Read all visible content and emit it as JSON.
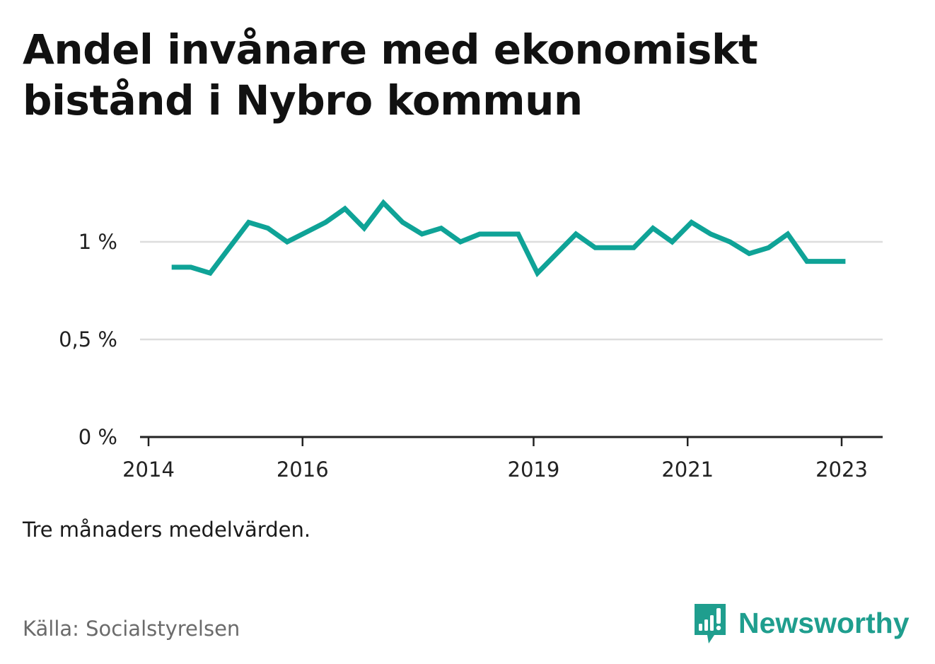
{
  "title": "Andel invånare med ekonomiskt bistånd i Nybro kommun",
  "note": "Tre månaders medelvärden.",
  "source": "Källa: Socialstyrelsen",
  "brand": {
    "name": "Newsworthy",
    "icon": "newsworthy-logo-icon"
  },
  "colors": {
    "line": "#0fa397",
    "grid": "#dddddd",
    "axis": "#222222",
    "brand": "#1f9e8e"
  },
  "chart_data": {
    "type": "line",
    "title": "Andel invånare med ekonomiskt bistånd i Nybro kommun",
    "xlabel": "",
    "ylabel": "",
    "ylim": [
      0,
      1.2
    ],
    "yticks": [
      {
        "value": 0,
        "label": "0 %"
      },
      {
        "value": 0.5,
        "label": "0,5 %"
      },
      {
        "value": 1,
        "label": "1 %"
      }
    ],
    "xticks": [
      {
        "value": 2014.0,
        "label": "2014"
      },
      {
        "value": 2016.0,
        "label": "2016"
      },
      {
        "value": 2019.0,
        "label": "2019"
      },
      {
        "value": 2021.0,
        "label": "2021"
      },
      {
        "value": 2023.0,
        "label": "2023"
      }
    ],
    "grid": true,
    "series": [
      {
        "x": [
          2014.3,
          2014.55,
          2014.8,
          2015.05,
          2015.3,
          2015.55,
          2015.8,
          2016.05,
          2016.3,
          2016.55,
          2016.8,
          2017.05,
          2017.3,
          2017.55,
          2017.8,
          2018.05,
          2018.3,
          2018.55,
          2018.8,
          2019.05,
          2019.3,
          2019.55,
          2019.8,
          2020.05,
          2020.3,
          2020.55,
          2020.8,
          2021.05,
          2021.3,
          2021.55,
          2021.8,
          2022.05,
          2022.3,
          2022.55,
          2022.8,
          2023.05
        ],
        "values": [
          0.87,
          0.87,
          0.84,
          0.97,
          1.1,
          1.07,
          1.0,
          1.05,
          1.1,
          1.17,
          1.07,
          1.2,
          1.1,
          1.04,
          1.07,
          1.0,
          1.04,
          1.04,
          1.04,
          0.84,
          0.94,
          1.04,
          0.97,
          0.97,
          0.97,
          1.07,
          1.0,
          1.1,
          1.04,
          1.0,
          0.94,
          0.97,
          1.04,
          0.9,
          0.9,
          0.9
        ]
      }
    ]
  }
}
